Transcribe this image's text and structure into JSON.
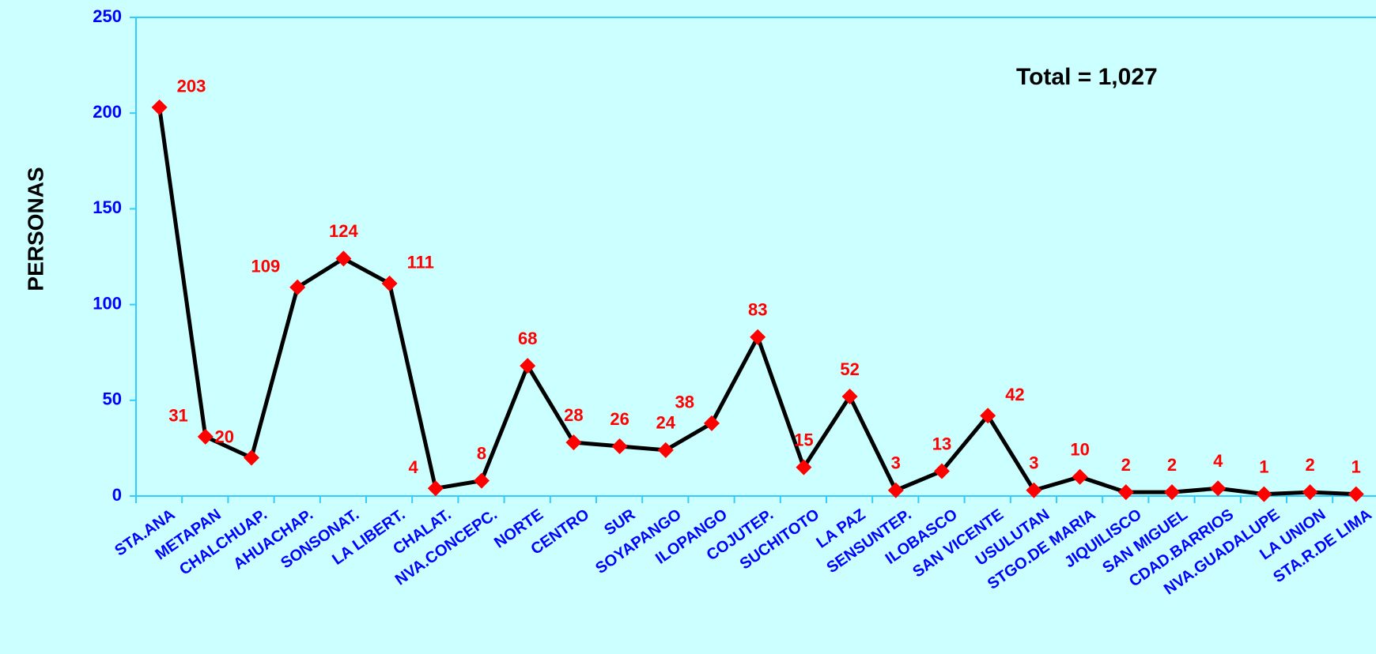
{
  "chart_data": {
    "type": "line",
    "title": "",
    "xlabel": "",
    "ylabel": "PERSONAS",
    "ylim": [
      0,
      250
    ],
    "yticks": [
      0,
      50,
      100,
      150,
      200,
      250
    ],
    "annotation": "Total = 1,027",
    "categories": [
      "STA.ANA",
      "METAPAN",
      "CHALCHUAP.",
      "AHUACHAP.",
      "SONSONAT.",
      "LA LIBERT.",
      "CHALAT.",
      "NVA.CONCEPC.",
      "NORTE",
      "CENTRO",
      "SUR",
      "SOYAPANGO",
      "ILOPANGO",
      "COJUTEP.",
      "SUCHITOTO",
      "LA PAZ",
      "SENSUNTEP.",
      "ILOBASCO",
      "SAN VICENTE",
      "USULUTAN",
      "STGO.DE MARIA",
      "JIQUILISCO",
      "SAN MIGUEL",
      "CDAD.BARRIOS",
      "NVA.GUADALUPE",
      "LA UNION",
      "STA.R.DE LIMA"
    ],
    "series": [
      {
        "values": [
          203,
          31,
          20,
          109,
          124,
          111,
          4,
          8,
          68,
          28,
          26,
          24,
          38,
          83,
          15,
          52,
          3,
          13,
          42,
          3,
          10,
          2,
          2,
          4,
          1,
          2,
          1
        ],
        "data_labels": [
          "203",
          "31",
          "20",
          "109",
          "124",
          "111",
          "4",
          "8",
          "68",
          "28",
          "26",
          "24",
          "38",
          "83",
          "15",
          "52",
          "3",
          "13",
          "42",
          "3",
          "10",
          "2",
          "2",
          "4",
          "1",
          "2",
          "1"
        ],
        "label_side": [
          "right",
          "left",
          "left",
          "left",
          "above",
          "right",
          "left",
          "above",
          "above",
          "above",
          "above",
          "above",
          "left",
          "above",
          "above",
          "above",
          "above",
          "above",
          "right",
          "above",
          "above",
          "above",
          "above",
          "above",
          "above",
          "above",
          "above"
        ]
      }
    ],
    "colors": {
      "background": "#CCFFFF",
      "axis": "#33CCFF",
      "line": "#000000",
      "marker": "#FF0000",
      "data_label": "#FF0000",
      "tick_label": "#0000FF"
    },
    "grid": false,
    "legend": "none"
  }
}
